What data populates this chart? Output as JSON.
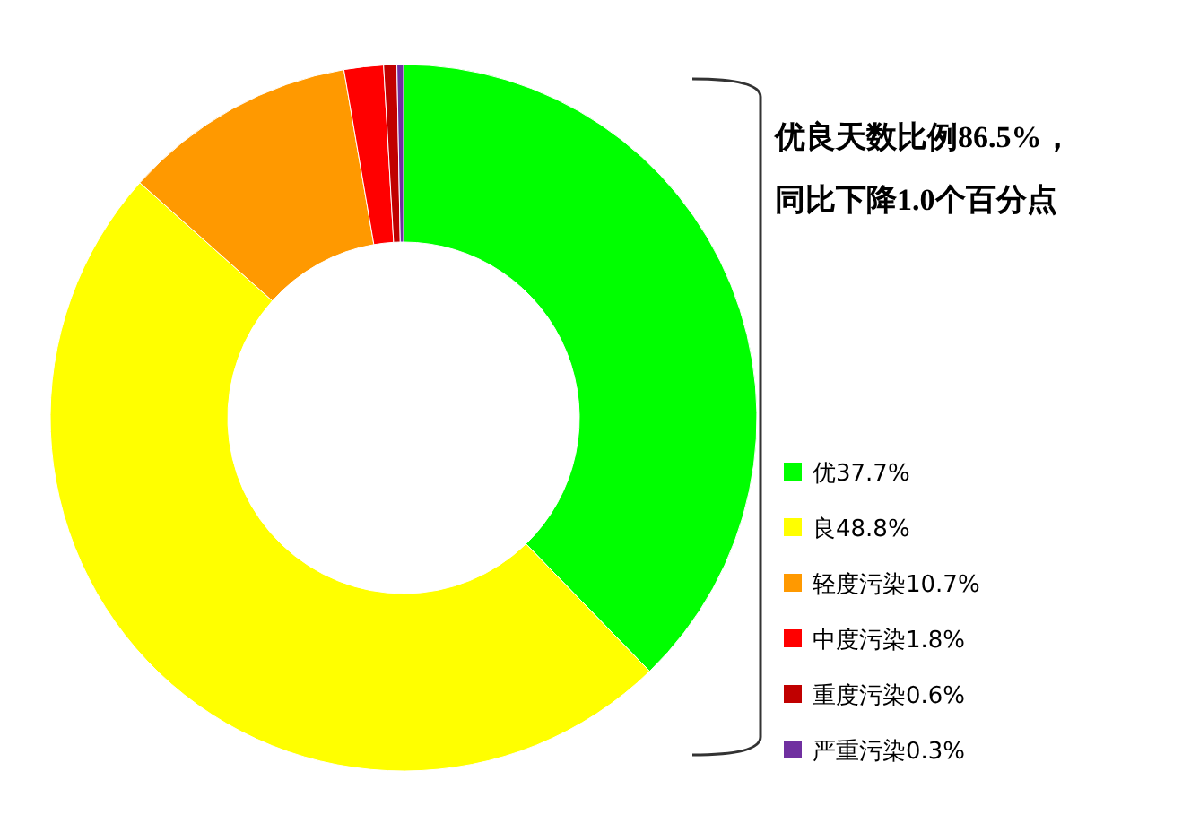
{
  "chart_data": {
    "type": "donut",
    "categories": [
      "优",
      "良",
      "轻度污染",
      "中度污染",
      "重度污染",
      "严重污染"
    ],
    "values": [
      37.7,
      48.8,
      10.7,
      1.8,
      0.6,
      0.3
    ],
    "value_labels": [
      "37.7%",
      "48.8%",
      "10.7%",
      "1.8%",
      "0.6%",
      "0.3%"
    ],
    "colors": [
      "#00ff00",
      "#ffff00",
      "#ff9900",
      "#ff0000",
      "#c00000",
      "#7030a0"
    ],
    "legend": "right",
    "annotations": [
      "优良天数比例86.5%，",
      "同比下降1.0个百分点"
    ]
  }
}
